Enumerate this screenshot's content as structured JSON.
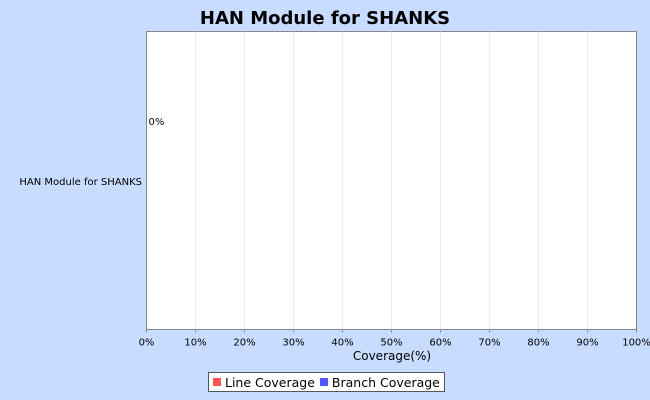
{
  "chart_data": {
    "type": "bar",
    "orientation": "horizontal",
    "title": "HAN Module for SHANKS",
    "categories": [
      "HAN Module for SHANKS"
    ],
    "series": [
      {
        "name": "Line Coverage",
        "values": [
          0
        ],
        "labels": [
          "0%"
        ],
        "color": "#ff5555"
      },
      {
        "name": "Branch Coverage",
        "values": [
          null
        ],
        "labels": [
          ""
        ],
        "color": "#5555ff"
      }
    ],
    "xlabel": "Coverage(%)",
    "ylabel": "",
    "xlim": [
      0,
      100
    ],
    "xticks": [
      "0%",
      "10%",
      "20%",
      "30%",
      "40%",
      "50%",
      "60%",
      "70%",
      "80%",
      "90%",
      "100%"
    ],
    "grid": "vertical dashed",
    "legend_position": "bottom"
  },
  "colors": {
    "background": "#c8dcff",
    "plot_background": "#ffffff",
    "grid": "#d8d8d8"
  }
}
